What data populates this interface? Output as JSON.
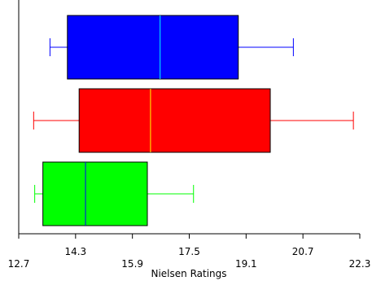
{
  "chart_data": {
    "type": "boxplot",
    "orientation": "horizontal",
    "title": "",
    "xlabel": "Nielsen Ratings",
    "ylabel": "",
    "xlim": [
      12.7,
      22.3
    ],
    "x_ticks": [
      12.7,
      14.3,
      15.9,
      17.5,
      19.1,
      20.7,
      22.3
    ],
    "x_tick_labels": [
      "12.7",
      "14.3",
      "15.9",
      "17.5",
      "19.1",
      "20.7",
      "22.3"
    ],
    "grid": false,
    "legend": "none",
    "series": [
      {
        "color": "#0000ff",
        "median_color": "#00ffff",
        "whisker_low": 13.58,
        "q1": 14.07,
        "median": 16.68,
        "q3": 18.88,
        "whisker_high": 20.43
      },
      {
        "color": "#ff0000",
        "median_color": "#ffff00",
        "whisker_low": 13.12,
        "q1": 14.4,
        "median": 16.41,
        "q3": 19.78,
        "whisker_high": 22.12
      },
      {
        "color": "#00ff00",
        "median_color": "#0000ff",
        "whisker_low": 13.15,
        "q1": 13.38,
        "median": 14.58,
        "q3": 16.32,
        "whisker_high": 17.62
      }
    ]
  }
}
